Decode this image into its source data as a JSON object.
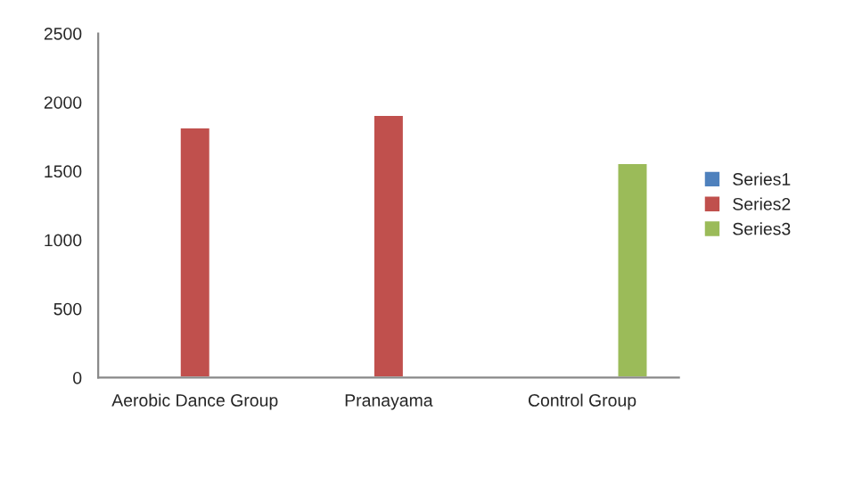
{
  "chart_data": {
    "type": "bar",
    "categories": [
      "Aerobic Dance Group",
      "Pranayama",
      "Control Group"
    ],
    "series": [
      {
        "name": "Series1",
        "color": "#4f81bd",
        "values": [
          null,
          null,
          null
        ]
      },
      {
        "name": "Series2",
        "color": "#c0504d",
        "values": [
          1820,
          1910,
          null
        ]
      },
      {
        "name": "Series3",
        "color": "#9bbb59",
        "values": [
          null,
          null,
          1560
        ]
      }
    ],
    "ylim": [
      0,
      2500
    ],
    "yticks": [
      0,
      500,
      1000,
      1500,
      2000,
      2500
    ],
    "grid": false,
    "legend": "right"
  }
}
